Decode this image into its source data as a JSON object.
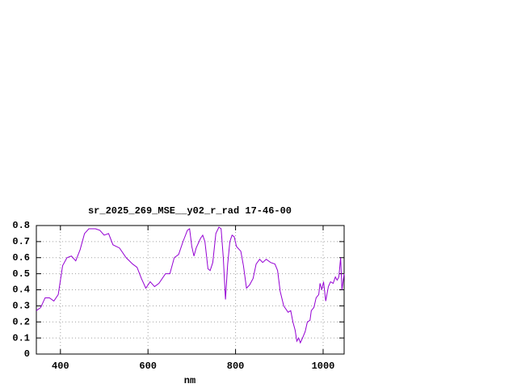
{
  "chart_data": {
    "type": "line",
    "title": "sr_2025_269_MSE__y02_r_rad 17-46-00",
    "x_label": "nm",
    "color": "#9400d3",
    "grid": true,
    "xlim": [
      345,
      1048
    ],
    "ylim": [
      0,
      0.8
    ],
    "xticks": [
      400,
      600,
      800,
      1000
    ],
    "yticks": [
      0,
      0.1,
      0.2,
      0.3,
      0.4,
      0.5,
      0.6,
      0.7,
      0.8
    ],
    "x": [
      345,
      355,
      365,
      375,
      385,
      395,
      405,
      415,
      425,
      435,
      445,
      455,
      465,
      480,
      490,
      500,
      510,
      520,
      535,
      550,
      565,
      575,
      585,
      595,
      605,
      615,
      625,
      640,
      650,
      660,
      670,
      680,
      690,
      695,
      700,
      705,
      710,
      720,
      725,
      730,
      737,
      742,
      748,
      755,
      762,
      767,
      772,
      777,
      782,
      787,
      792,
      797,
      802,
      812,
      818,
      825,
      832,
      840,
      847,
      855,
      862,
      870,
      880,
      890,
      896,
      902,
      910,
      920,
      926,
      931,
      936,
      940,
      944,
      948,
      953,
      959,
      964,
      970,
      973,
      979,
      984,
      990,
      993,
      997,
      1001,
      1006,
      1012,
      1017,
      1023,
      1028,
      1032,
      1036,
      1040,
      1043,
      1048
    ],
    "values": [
      0.27,
      0.29,
      0.35,
      0.35,
      0.33,
      0.37,
      0.55,
      0.6,
      0.61,
      0.58,
      0.65,
      0.75,
      0.78,
      0.78,
      0.77,
      0.74,
      0.75,
      0.68,
      0.66,
      0.6,
      0.56,
      0.54,
      0.47,
      0.41,
      0.45,
      0.42,
      0.44,
      0.5,
      0.5,
      0.6,
      0.62,
      0.7,
      0.77,
      0.78,
      0.67,
      0.61,
      0.66,
      0.72,
      0.74,
      0.7,
      0.53,
      0.52,
      0.57,
      0.75,
      0.79,
      0.78,
      0.6,
      0.34,
      0.56,
      0.7,
      0.74,
      0.73,
      0.67,
      0.64,
      0.55,
      0.41,
      0.43,
      0.47,
      0.56,
      0.59,
      0.57,
      0.59,
      0.57,
      0.56,
      0.52,
      0.39,
      0.3,
      0.26,
      0.27,
      0.2,
      0.15,
      0.08,
      0.1,
      0.07,
      0.1,
      0.14,
      0.2,
      0.21,
      0.27,
      0.29,
      0.35,
      0.37,
      0.44,
      0.4,
      0.45,
      0.33,
      0.42,
      0.45,
      0.44,
      0.48,
      0.46,
      0.48,
      0.6,
      0.4,
      0.5
    ]
  }
}
